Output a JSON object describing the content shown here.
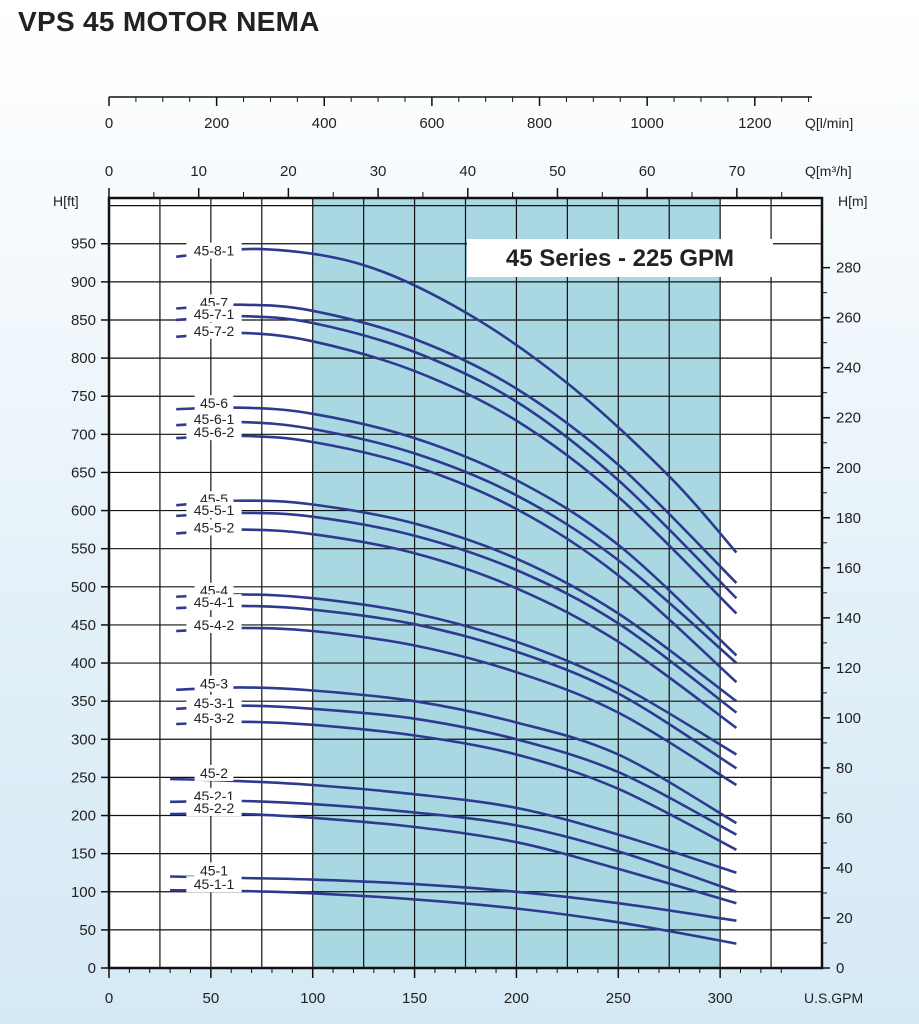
{
  "title": "VPS 45 MOTOR NEMA",
  "chart_data": {
    "type": "line",
    "title": "VPS 45 MOTOR NEMA",
    "annotation": "45 Series - 225 GPM",
    "x_axis": {
      "label": "U.S.GPM",
      "lim": [
        0,
        350
      ],
      "ticks": [
        0,
        50,
        100,
        150,
        200,
        250,
        300
      ]
    },
    "top_axis_lpm": {
      "label": "Q[l/min]",
      "ticks": [
        0,
        200,
        400,
        600,
        800,
        1000,
        1200
      ]
    },
    "top_axis_m3h": {
      "label": "Q[m³/h]",
      "ticks": [
        0,
        10,
        20,
        30,
        40,
        50,
        60,
        70
      ]
    },
    "y_axis_left": {
      "label": "H[ft]",
      "lim": [
        0,
        1010
      ],
      "ticks": [
        0,
        50,
        100,
        150,
        200,
        250,
        300,
        350,
        400,
        450,
        500,
        550,
        600,
        650,
        700,
        750,
        800,
        850,
        900,
        950
      ]
    },
    "y_axis_right": {
      "label": "H[m]",
      "ticks": [
        0,
        20,
        40,
        60,
        80,
        100,
        120,
        140,
        160,
        180,
        200,
        220,
        240,
        260,
        280
      ]
    },
    "recommended_range_gpm": [
      100,
      300
    ],
    "grid": true,
    "series": [
      {
        "name": "45-8-1",
        "points": [
          [
            33,
            933
          ],
          [
            75,
            943
          ],
          [
            125,
            922
          ],
          [
            175,
            860
          ],
          [
            225,
            767
          ],
          [
            275,
            645
          ],
          [
            308,
            545
          ]
        ]
      },
      {
        "name": "45-7",
        "points": [
          [
            33,
            865
          ],
          [
            65,
            870
          ],
          [
            100,
            862
          ],
          [
            150,
            825
          ],
          [
            200,
            760
          ],
          [
            250,
            660
          ],
          [
            308,
            505
          ]
        ]
      },
      {
        "name": "45-7-1",
        "points": [
          [
            33,
            850
          ],
          [
            65,
            855
          ],
          [
            100,
            846
          ],
          [
            150,
            808
          ],
          [
            200,
            743
          ],
          [
            250,
            640
          ],
          [
            308,
            485
          ]
        ]
      },
      {
        "name": "45-7-2",
        "points": [
          [
            33,
            828
          ],
          [
            65,
            833
          ],
          [
            100,
            822
          ],
          [
            150,
            783
          ],
          [
            200,
            718
          ],
          [
            250,
            618
          ],
          [
            308,
            465
          ]
        ]
      },
      {
        "name": "45-6",
        "points": [
          [
            33,
            733
          ],
          [
            65,
            735
          ],
          [
            100,
            727
          ],
          [
            150,
            695
          ],
          [
            200,
            640
          ],
          [
            250,
            555
          ],
          [
            308,
            410
          ]
        ]
      },
      {
        "name": "45-6-1",
        "points": [
          [
            33,
            712
          ],
          [
            65,
            716
          ],
          [
            100,
            707
          ],
          [
            150,
            675
          ],
          [
            200,
            620
          ],
          [
            250,
            535
          ],
          [
            308,
            400
          ]
        ]
      },
      {
        "name": "45-6-2",
        "points": [
          [
            33,
            695
          ],
          [
            65,
            698
          ],
          [
            100,
            690
          ],
          [
            150,
            658
          ],
          [
            200,
            602
          ],
          [
            250,
            515
          ],
          [
            308,
            375
          ]
        ]
      },
      {
        "name": "45-5",
        "points": [
          [
            33,
            607
          ],
          [
            65,
            613
          ],
          [
            100,
            608
          ],
          [
            150,
            583
          ],
          [
            200,
            537
          ],
          [
            250,
            465
          ],
          [
            308,
            350
          ]
        ]
      },
      {
        "name": "45-5-1",
        "points": [
          [
            33,
            593
          ],
          [
            65,
            597
          ],
          [
            100,
            592
          ],
          [
            150,
            567
          ],
          [
            200,
            522
          ],
          [
            250,
            452
          ],
          [
            308,
            335
          ]
        ]
      },
      {
        "name": "45-5-2",
        "points": [
          [
            33,
            570
          ],
          [
            65,
            575
          ],
          [
            100,
            569
          ],
          [
            150,
            544
          ],
          [
            200,
            498
          ],
          [
            250,
            428
          ],
          [
            308,
            315
          ]
        ]
      },
      {
        "name": "45-4",
        "points": [
          [
            33,
            487
          ],
          [
            65,
            490
          ],
          [
            100,
            485
          ],
          [
            150,
            465
          ],
          [
            200,
            428
          ],
          [
            250,
            372
          ],
          [
            308,
            280
          ]
        ]
      },
      {
        "name": "45-4-1",
        "points": [
          [
            33,
            472
          ],
          [
            65,
            475
          ],
          [
            100,
            470
          ],
          [
            150,
            451
          ],
          [
            200,
            415
          ],
          [
            250,
            360
          ],
          [
            308,
            262
          ]
        ]
      },
      {
        "name": "45-4-2",
        "points": [
          [
            33,
            442
          ],
          [
            65,
            446
          ],
          [
            100,
            442
          ],
          [
            150,
            423
          ],
          [
            200,
            388
          ],
          [
            250,
            335
          ],
          [
            308,
            240
          ]
        ]
      },
      {
        "name": "45-3",
        "points": [
          [
            33,
            365
          ],
          [
            65,
            368
          ],
          [
            100,
            364
          ],
          [
            150,
            350
          ],
          [
            200,
            322
          ],
          [
            250,
            280
          ],
          [
            308,
            190
          ]
        ]
      },
      {
        "name": "45-3-1",
        "points": [
          [
            33,
            340
          ],
          [
            65,
            344
          ],
          [
            100,
            340
          ],
          [
            150,
            327
          ],
          [
            200,
            300
          ],
          [
            250,
            257
          ],
          [
            308,
            175
          ]
        ]
      },
      {
        "name": "45-3-2",
        "points": [
          [
            33,
            320
          ],
          [
            65,
            323
          ],
          [
            100,
            319
          ],
          [
            150,
            305
          ],
          [
            200,
            280
          ],
          [
            250,
            235
          ],
          [
            308,
            155
          ]
        ]
      },
      {
        "name": "45-2",
        "points": [
          [
            30,
            248
          ],
          [
            65,
            245
          ],
          [
            100,
            240
          ],
          [
            150,
            228
          ],
          [
            200,
            210
          ],
          [
            250,
            175
          ],
          [
            308,
            125
          ]
        ]
      },
      {
        "name": "45-2-1",
        "points": [
          [
            30,
            218
          ],
          [
            65,
            219
          ],
          [
            100,
            215
          ],
          [
            150,
            204
          ],
          [
            200,
            187
          ],
          [
            250,
            153
          ],
          [
            308,
            100
          ]
        ]
      },
      {
        "name": "45-2-2",
        "points": [
          [
            30,
            202
          ],
          [
            65,
            202
          ],
          [
            100,
            197
          ],
          [
            150,
            185
          ],
          [
            200,
            165
          ],
          [
            250,
            130
          ],
          [
            308,
            85
          ]
        ]
      },
      {
        "name": "45-1",
        "points": [
          [
            30,
            120
          ],
          [
            65,
            118
          ],
          [
            100,
            116
          ],
          [
            150,
            110
          ],
          [
            200,
            100
          ],
          [
            250,
            85
          ],
          [
            308,
            62
          ]
        ]
      },
      {
        "name": "45-1-1",
        "points": [
          [
            30,
            102
          ],
          [
            65,
            101
          ],
          [
            100,
            98
          ],
          [
            150,
            90
          ],
          [
            200,
            78
          ],
          [
            250,
            60
          ],
          [
            308,
            32
          ]
        ]
      }
    ]
  },
  "colors": {
    "curve": "#2e3a8f",
    "band": "#a9d8e3",
    "frame": "#111111",
    "annotation_bg": "#ffffff"
  }
}
